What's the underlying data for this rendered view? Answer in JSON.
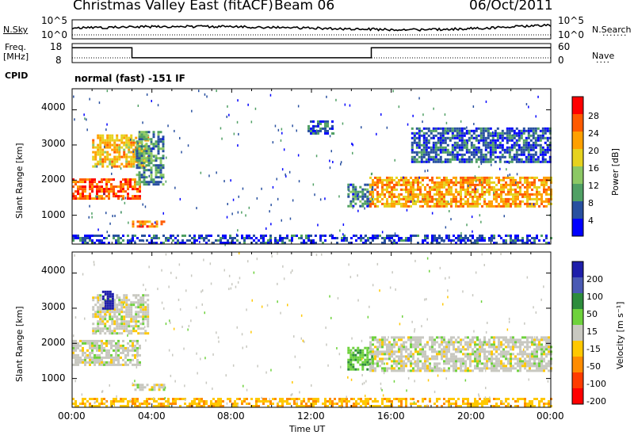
{
  "header": {
    "station": "Christmas Valley East (fitACF)",
    "beam": "Beam 06",
    "date": "06/Oct/2011"
  },
  "top_panels": {
    "n_sky_label": "N.Sky",
    "n_sky_ticks": [
      "10^5",
      "10^0"
    ],
    "n_search_label": "N.Search",
    "n_search_ticks": [
      "10^5",
      "10^0"
    ],
    "freq_label_line1": "Freq.",
    "freq_label_line2": "[MHz]",
    "freq_ticks": [
      "18",
      "8"
    ],
    "nave_label": "Nave",
    "nave_ticks": [
      "60",
      "0"
    ],
    "cpid_label": "CPID",
    "cpid_text": "normal (fast) -151 IF"
  },
  "power_panel": {
    "ylabel": "Slant Range [km]",
    "yticks": [
      "4000",
      "3000",
      "2000",
      "1000"
    ],
    "colorbar_label": "Power [dB]",
    "colorbar_ticks": [
      "28",
      "24",
      "20",
      "16",
      "12",
      "8",
      "4"
    ],
    "colorbar_colors": [
      "#ff0000",
      "#ff5a00",
      "#ffa000",
      "#e6d21e",
      "#8cc864",
      "#50a064",
      "#2850a0",
      "#0000ff"
    ]
  },
  "velocity_panel": {
    "ylabel": "Slant Range [km]",
    "yticks": [
      "4000",
      "3000",
      "2000",
      "1000"
    ],
    "colorbar_label": "Velocity [m s⁻¹]",
    "colorbar_ticks": [
      "200",
      "100",
      "50",
      "15",
      "-15",
      "-50",
      "-100",
      "-200"
    ],
    "colorbar_colors": [
      "#1e1eaa",
      "#4a5ab4",
      "#2d8c3c",
      "#6ed23c",
      "#c8c8c0",
      "#ffc800",
      "#ff8c00",
      "#ff3c00",
      "#ff0000"
    ]
  },
  "x_axis": {
    "ticks": [
      "00:00",
      "04:00",
      "08:00",
      "12:00",
      "16:00",
      "20:00",
      "00:00"
    ],
    "label": "Time UT"
  },
  "chart_data": {
    "type": "heatmap",
    "title": "Christmas Valley East (fitACF)",
    "subtitle": "Beam 06",
    "date": "06/Oct/2011",
    "xlabel": "Time UT",
    "x_range_hours": [
      0,
      24
    ],
    "panels": [
      {
        "name": "Power",
        "ylabel": "Slant Range [km]",
        "yrange_km": [
          180,
          4600
        ],
        "zlabel": "Power [dB]",
        "zrange": [
          0,
          32
        ],
        "regions": [
          {
            "t0": 0.0,
            "t1": 3.4,
            "r0": 1450,
            "r1": 2050,
            "level": 26
          },
          {
            "t0": 1.0,
            "t1": 3.8,
            "r0": 2400,
            "r1": 3300,
            "level": 20
          },
          {
            "t0": 3.0,
            "t1": 4.6,
            "r0": 650,
            "r1": 850,
            "level": 24
          },
          {
            "t0": 3.2,
            "t1": 4.6,
            "r0": 1900,
            "r1": 3400,
            "level": 10
          },
          {
            "t0": 11.8,
            "t1": 13.0,
            "r0": 3300,
            "r1": 3700,
            "level": 6
          },
          {
            "t0": 13.8,
            "t1": 15.0,
            "r0": 1250,
            "r1": 1900,
            "level": 8
          },
          {
            "t0": 14.9,
            "t1": 24.0,
            "r0": 1250,
            "r1": 2100,
            "level": 22
          },
          {
            "t0": 17.0,
            "t1": 24.0,
            "r0": 2500,
            "r1": 3500,
            "level": 6
          },
          {
            "t0": 0.0,
            "t1": 24.0,
            "r0": 190,
            "r1": 450,
            "level": 5
          }
        ]
      },
      {
        "name": "Velocity",
        "ylabel": "Slant Range [km]",
        "yrange_km": [
          180,
          4600
        ],
        "zlabel": "Velocity [m s-1]",
        "zrange": [
          -200,
          200
        ],
        "regions": [
          {
            "t0": 0.0,
            "t1": 3.4,
            "r0": 1400,
            "r1": 2100,
            "level": 0
          },
          {
            "t0": 1.0,
            "t1": 3.8,
            "r0": 2300,
            "r1": 3400,
            "level": 0
          },
          {
            "t0": 1.5,
            "t1": 2.0,
            "r0": 3000,
            "r1": 3500,
            "level": 220
          },
          {
            "t0": 3.0,
            "t1": 4.6,
            "r0": 650,
            "r1": 850,
            "level": 0
          },
          {
            "t0": 13.8,
            "t1": 15.0,
            "r0": 1250,
            "r1": 1900,
            "level": 40
          },
          {
            "t0": 14.9,
            "t1": 24.0,
            "r0": 1250,
            "r1": 2200,
            "level": 0
          },
          {
            "t0": 0.0,
            "t1": 24.0,
            "r0": 190,
            "r1": 450,
            "level": -40
          }
        ]
      }
    ]
  }
}
